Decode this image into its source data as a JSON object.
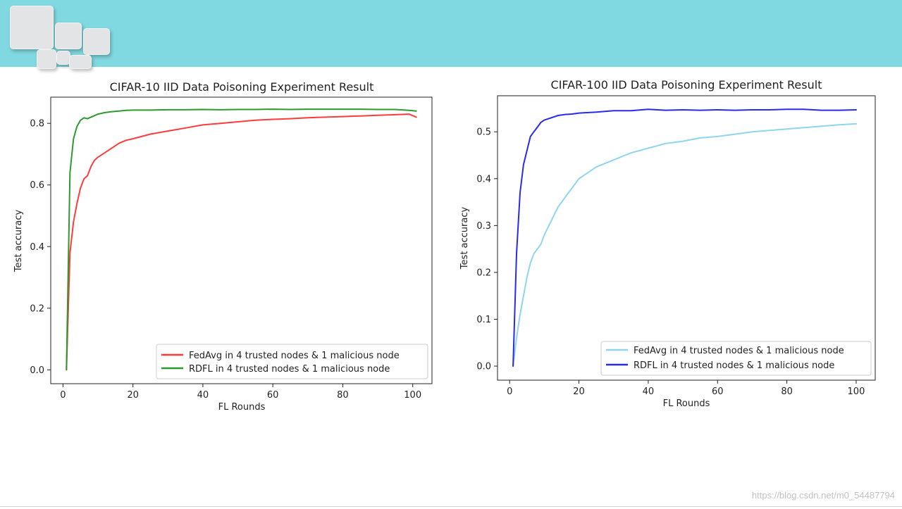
{
  "watermark": "https://blog.csdn.net/m0_54487794",
  "colors": {
    "banner": "#80d8e0"
  },
  "chart_data": [
    {
      "type": "line",
      "title": "CIFAR-10 IID Data Poisoning Experiment Result",
      "xlabel": "FL Rounds",
      "ylabel": "Test accuracy",
      "xlim": [
        -3.5,
        105.5
      ],
      "ylim": [
        -0.045,
        0.885
      ],
      "xticks": [
        0,
        20,
        40,
        60,
        80,
        100
      ],
      "yticks": [
        0.0,
        0.2,
        0.4,
        0.6,
        0.8
      ],
      "tick_decimals": 1,
      "grid": false,
      "legend": "lower right",
      "x": [
        1,
        2,
        3,
        4,
        5,
        6,
        7,
        8,
        9,
        10,
        12,
        14,
        16,
        18,
        20,
        25,
        30,
        35,
        40,
        45,
        50,
        55,
        60,
        65,
        70,
        75,
        80,
        85,
        90,
        95,
        99,
        101
      ],
      "series": [
        {
          "name": "FedAvg in 4 trusted nodes & 1 malicious node",
          "color": "#ff3b3b",
          "values": [
            0.0,
            0.38,
            0.48,
            0.54,
            0.59,
            0.62,
            0.63,
            0.66,
            0.68,
            0.69,
            0.705,
            0.72,
            0.735,
            0.745,
            0.75,
            0.765,
            0.775,
            0.785,
            0.795,
            0.8,
            0.805,
            0.81,
            0.813,
            0.815,
            0.818,
            0.82,
            0.822,
            0.824,
            0.826,
            0.828,
            0.83,
            0.82
          ]
        },
        {
          "name": "RDFL in 4 trusted nodes & 1 malicious node",
          "color": "#2e9a2e",
          "values": [
            0.0,
            0.64,
            0.75,
            0.79,
            0.81,
            0.818,
            0.815,
            0.82,
            0.825,
            0.83,
            0.835,
            0.838,
            0.84,
            0.842,
            0.843,
            0.843,
            0.844,
            0.844,
            0.845,
            0.844,
            0.845,
            0.845,
            0.846,
            0.845,
            0.846,
            0.846,
            0.846,
            0.846,
            0.845,
            0.845,
            0.842,
            0.84
          ]
        }
      ]
    },
    {
      "type": "line",
      "title": "CIFAR-100 IID Data Poisoning Experiment Result",
      "xlabel": "FL Rounds",
      "ylabel": "Test accuracy",
      "xlim": [
        -3.5,
        105.5
      ],
      "ylim": [
        -0.03,
        0.577
      ],
      "xticks": [
        0,
        20,
        40,
        60,
        80,
        100
      ],
      "yticks": [
        0.0,
        0.1,
        0.2,
        0.3,
        0.4,
        0.5
      ],
      "tick_decimals": 1,
      "grid": false,
      "legend": "lower right",
      "x": [
        1,
        2,
        3,
        4,
        5,
        6,
        7,
        8,
        9,
        10,
        12,
        14,
        16,
        18,
        20,
        25,
        30,
        35,
        40,
        45,
        50,
        55,
        60,
        65,
        70,
        75,
        80,
        85,
        90,
        95,
        100
      ],
      "series": [
        {
          "name": "FedAvg in 4 trusted nodes & 1 malicious node",
          "color": "#8fd5ee",
          "values": [
            0.0,
            0.06,
            0.11,
            0.15,
            0.19,
            0.22,
            0.24,
            0.25,
            0.26,
            0.28,
            0.31,
            0.34,
            0.36,
            0.38,
            0.4,
            0.425,
            0.44,
            0.455,
            0.465,
            0.475,
            0.48,
            0.487,
            0.49,
            0.495,
            0.5,
            0.503,
            0.506,
            0.509,
            0.512,
            0.515,
            0.517
          ]
        },
        {
          "name": "RDFL in 4 trusted nodes & 1 malicious node",
          "color": "#2a2aee",
          "values": [
            0.0,
            0.24,
            0.37,
            0.43,
            0.46,
            0.49,
            0.5,
            0.51,
            0.52,
            0.525,
            0.53,
            0.535,
            0.537,
            0.538,
            0.54,
            0.542,
            0.545,
            0.545,
            0.548,
            0.546,
            0.547,
            0.546,
            0.547,
            0.546,
            0.547,
            0.547,
            0.548,
            0.548,
            0.546,
            0.546,
            0.547
          ]
        }
      ]
    }
  ]
}
